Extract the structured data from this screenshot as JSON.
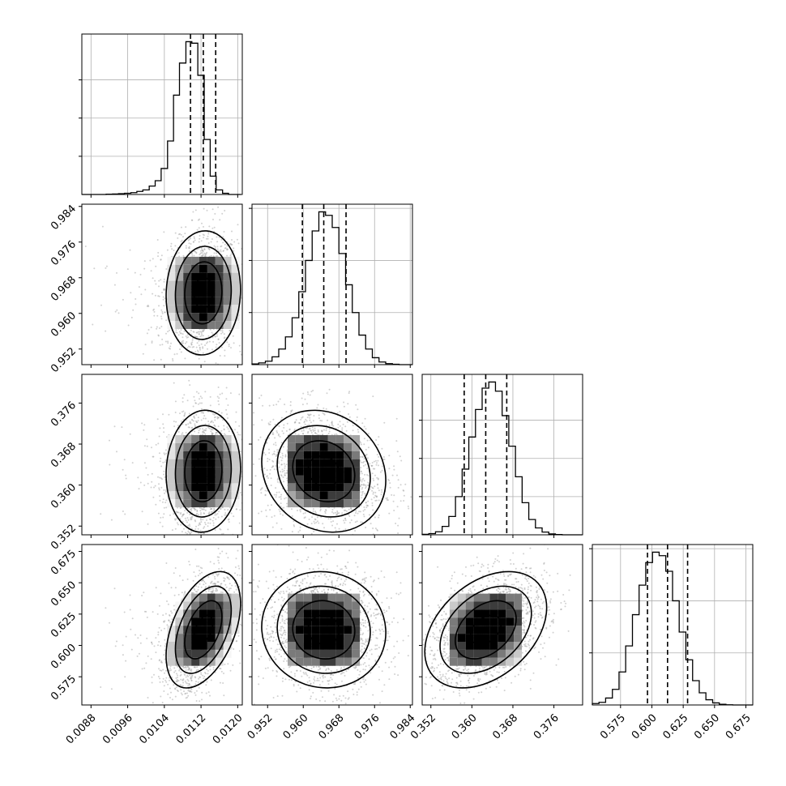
{
  "chart_data": {
    "type": "corner",
    "grid": true,
    "quantile_lines": "dashed",
    "parameters": [
      {
        "range": [
          0.0086,
          0.0121
        ],
        "ticks": [
          0.0088,
          0.0096,
          0.0104,
          0.0112,
          0.012
        ],
        "tick_labels": [
          "0.0088",
          "0.0096",
          "0.0104",
          "0.0112",
          "0.0120"
        ],
        "quantiles": [
          0.01097,
          0.01125,
          0.01152
        ],
        "hist_bins": [
          0.0086,
          0.00873,
          0.00887,
          0.009,
          0.00913,
          0.00927,
          0.0094,
          0.00953,
          0.00967,
          0.0098,
          0.00993,
          0.01007,
          0.0102,
          0.01033,
          0.01047,
          0.0106,
          0.01073,
          0.01087,
          0.011,
          0.01113,
          0.01127,
          0.0114,
          0.01153,
          0.01167,
          0.0118,
          0.01193,
          0.01207
        ],
        "hist_counts": [
          0,
          0,
          0,
          0,
          2,
          3,
          5,
          8,
          12,
          20,
          30,
          55,
          90,
          170,
          350,
          650,
          860,
          1000,
          990,
          780,
          360,
          120,
          30,
          8,
          0,
          0
        ],
        "hist_yticks": [
          0,
          250,
          500,
          750
        ],
        "mean": 0.01125,
        "sigma": 0.00028
      },
      {
        "range": [
          0.9485,
          0.9845
        ],
        "ticks": [
          0.952,
          0.96,
          0.968,
          0.976,
          0.984
        ],
        "tick_labels": [
          "0.952",
          "0.960",
          "0.968",
          "0.976",
          "0.984"
        ],
        "quantiles": [
          0.9598,
          0.9646,
          0.9696
        ],
        "hist_bins": [
          0.9485,
          0.95,
          0.9515,
          0.953,
          0.9545,
          0.956,
          0.9575,
          0.959,
          0.9605,
          0.962,
          0.9635,
          0.965,
          0.9665,
          0.968,
          0.9695,
          0.971,
          0.9725,
          0.974,
          0.9755,
          0.977,
          0.9785,
          0.98,
          0.9815,
          0.983,
          0.9845
        ],
        "hist_counts": [
          4,
          10,
          20,
          45,
          90,
          160,
          270,
          420,
          600,
          770,
          880,
          860,
          790,
          640,
          460,
          300,
          170,
          90,
          40,
          15,
          6,
          2,
          0,
          0
        ],
        "hist_yticks": [
          0,
          300,
          600,
          900
        ],
        "mean": 0.9646,
        "sigma": 0.0048
      },
      {
        "range": [
          0.3503,
          0.3816
        ],
        "ticks": [
          0.352,
          0.36,
          0.368,
          0.376
        ],
        "tick_labels": [
          "0.352",
          "0.360",
          "0.368",
          "0.376"
        ],
        "quantiles": [
          0.3585,
          0.3627,
          0.3668
        ],
        "hist_bins": [
          0.3503,
          0.3516,
          0.3529,
          0.3542,
          0.3555,
          0.3568,
          0.3581,
          0.3594,
          0.3607,
          0.362,
          0.3633,
          0.3646,
          0.3659,
          0.3672,
          0.3685,
          0.3698,
          0.3711,
          0.3724,
          0.3737,
          0.375,
          0.3763,
          0.3776,
          0.3789,
          0.3802,
          0.3815
        ],
        "hist_counts": [
          3,
          8,
          20,
          55,
          120,
          250,
          430,
          640,
          820,
          960,
          1000,
          940,
          780,
          580,
          380,
          210,
          100,
          45,
          18,
          6,
          2,
          0,
          0,
          0
        ],
        "hist_yticks": [
          0,
          250,
          500,
          750
        ],
        "mean": 0.3627,
        "sigma": 0.0041
      },
      {
        "range": [
          0.5525,
          0.6805
        ],
        "ticks": [
          0.575,
          0.6,
          0.625,
          0.65,
          0.675
        ],
        "tick_labels": [
          "0.575",
          "0.600",
          "0.625",
          "0.650",
          "0.675"
        ],
        "quantiles": [
          0.5965,
          0.6125,
          0.6285
        ],
        "hist_bins": [
          0.5525,
          0.5578,
          0.5631,
          0.5685,
          0.5738,
          0.5791,
          0.5845,
          0.5898,
          0.5951,
          0.6005,
          0.6058,
          0.6111,
          0.6165,
          0.6218,
          0.6271,
          0.6325,
          0.6378,
          0.6431,
          0.6485,
          0.6538,
          0.6591,
          0.6645,
          0.6698,
          0.6751,
          0.6805
        ],
        "hist_counts": [
          8,
          15,
          40,
          90,
          190,
          340,
          520,
          690,
          820,
          880,
          860,
          770,
          600,
          420,
          260,
          140,
          70,
          30,
          12,
          4,
          1,
          0,
          0,
          0
        ],
        "hist_yticks": [
          0,
          300,
          600,
          900
        ],
        "mean": 0.6125,
        "sigma": 0.016
      }
    ],
    "correlations": [
      [
        0,
        0,
        0,
        0
      ],
      [
        0.05,
        0,
        0,
        0
      ],
      [
        0.05,
        -0.15,
        0,
        0
      ],
      [
        0.45,
        -0.05,
        0.38,
        0
      ]
    ]
  }
}
